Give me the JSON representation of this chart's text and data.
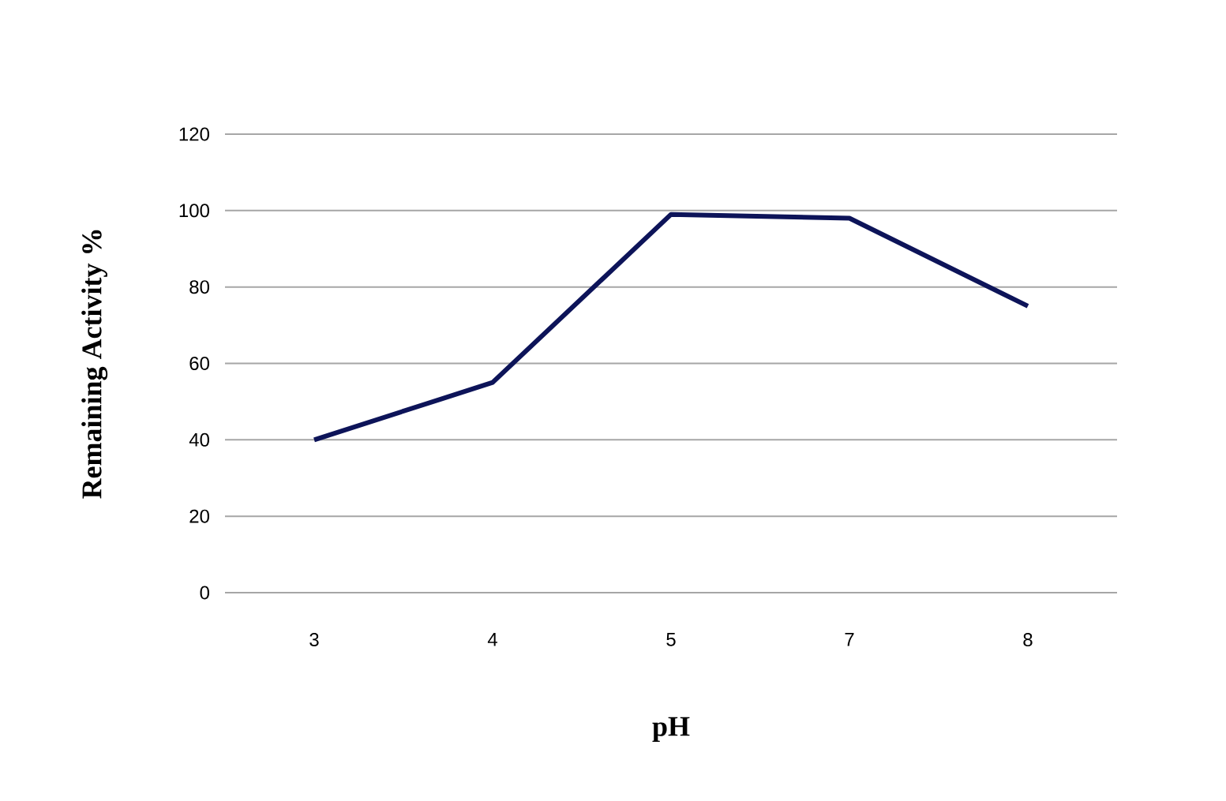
{
  "chart_data": {
    "type": "line",
    "xlabel": "pH",
    "ylabel": "Remaining Activity %",
    "categories": [
      "3",
      "4",
      "5",
      "7",
      "8"
    ],
    "values": [
      40,
      55,
      99,
      98,
      75
    ],
    "color": "#0d1459",
    "ylim": [
      0,
      120
    ],
    "yticks": [
      0,
      20,
      40,
      60,
      80,
      100,
      120
    ],
    "grid": "y",
    "marker": "none",
    "line_style": "solid"
  }
}
